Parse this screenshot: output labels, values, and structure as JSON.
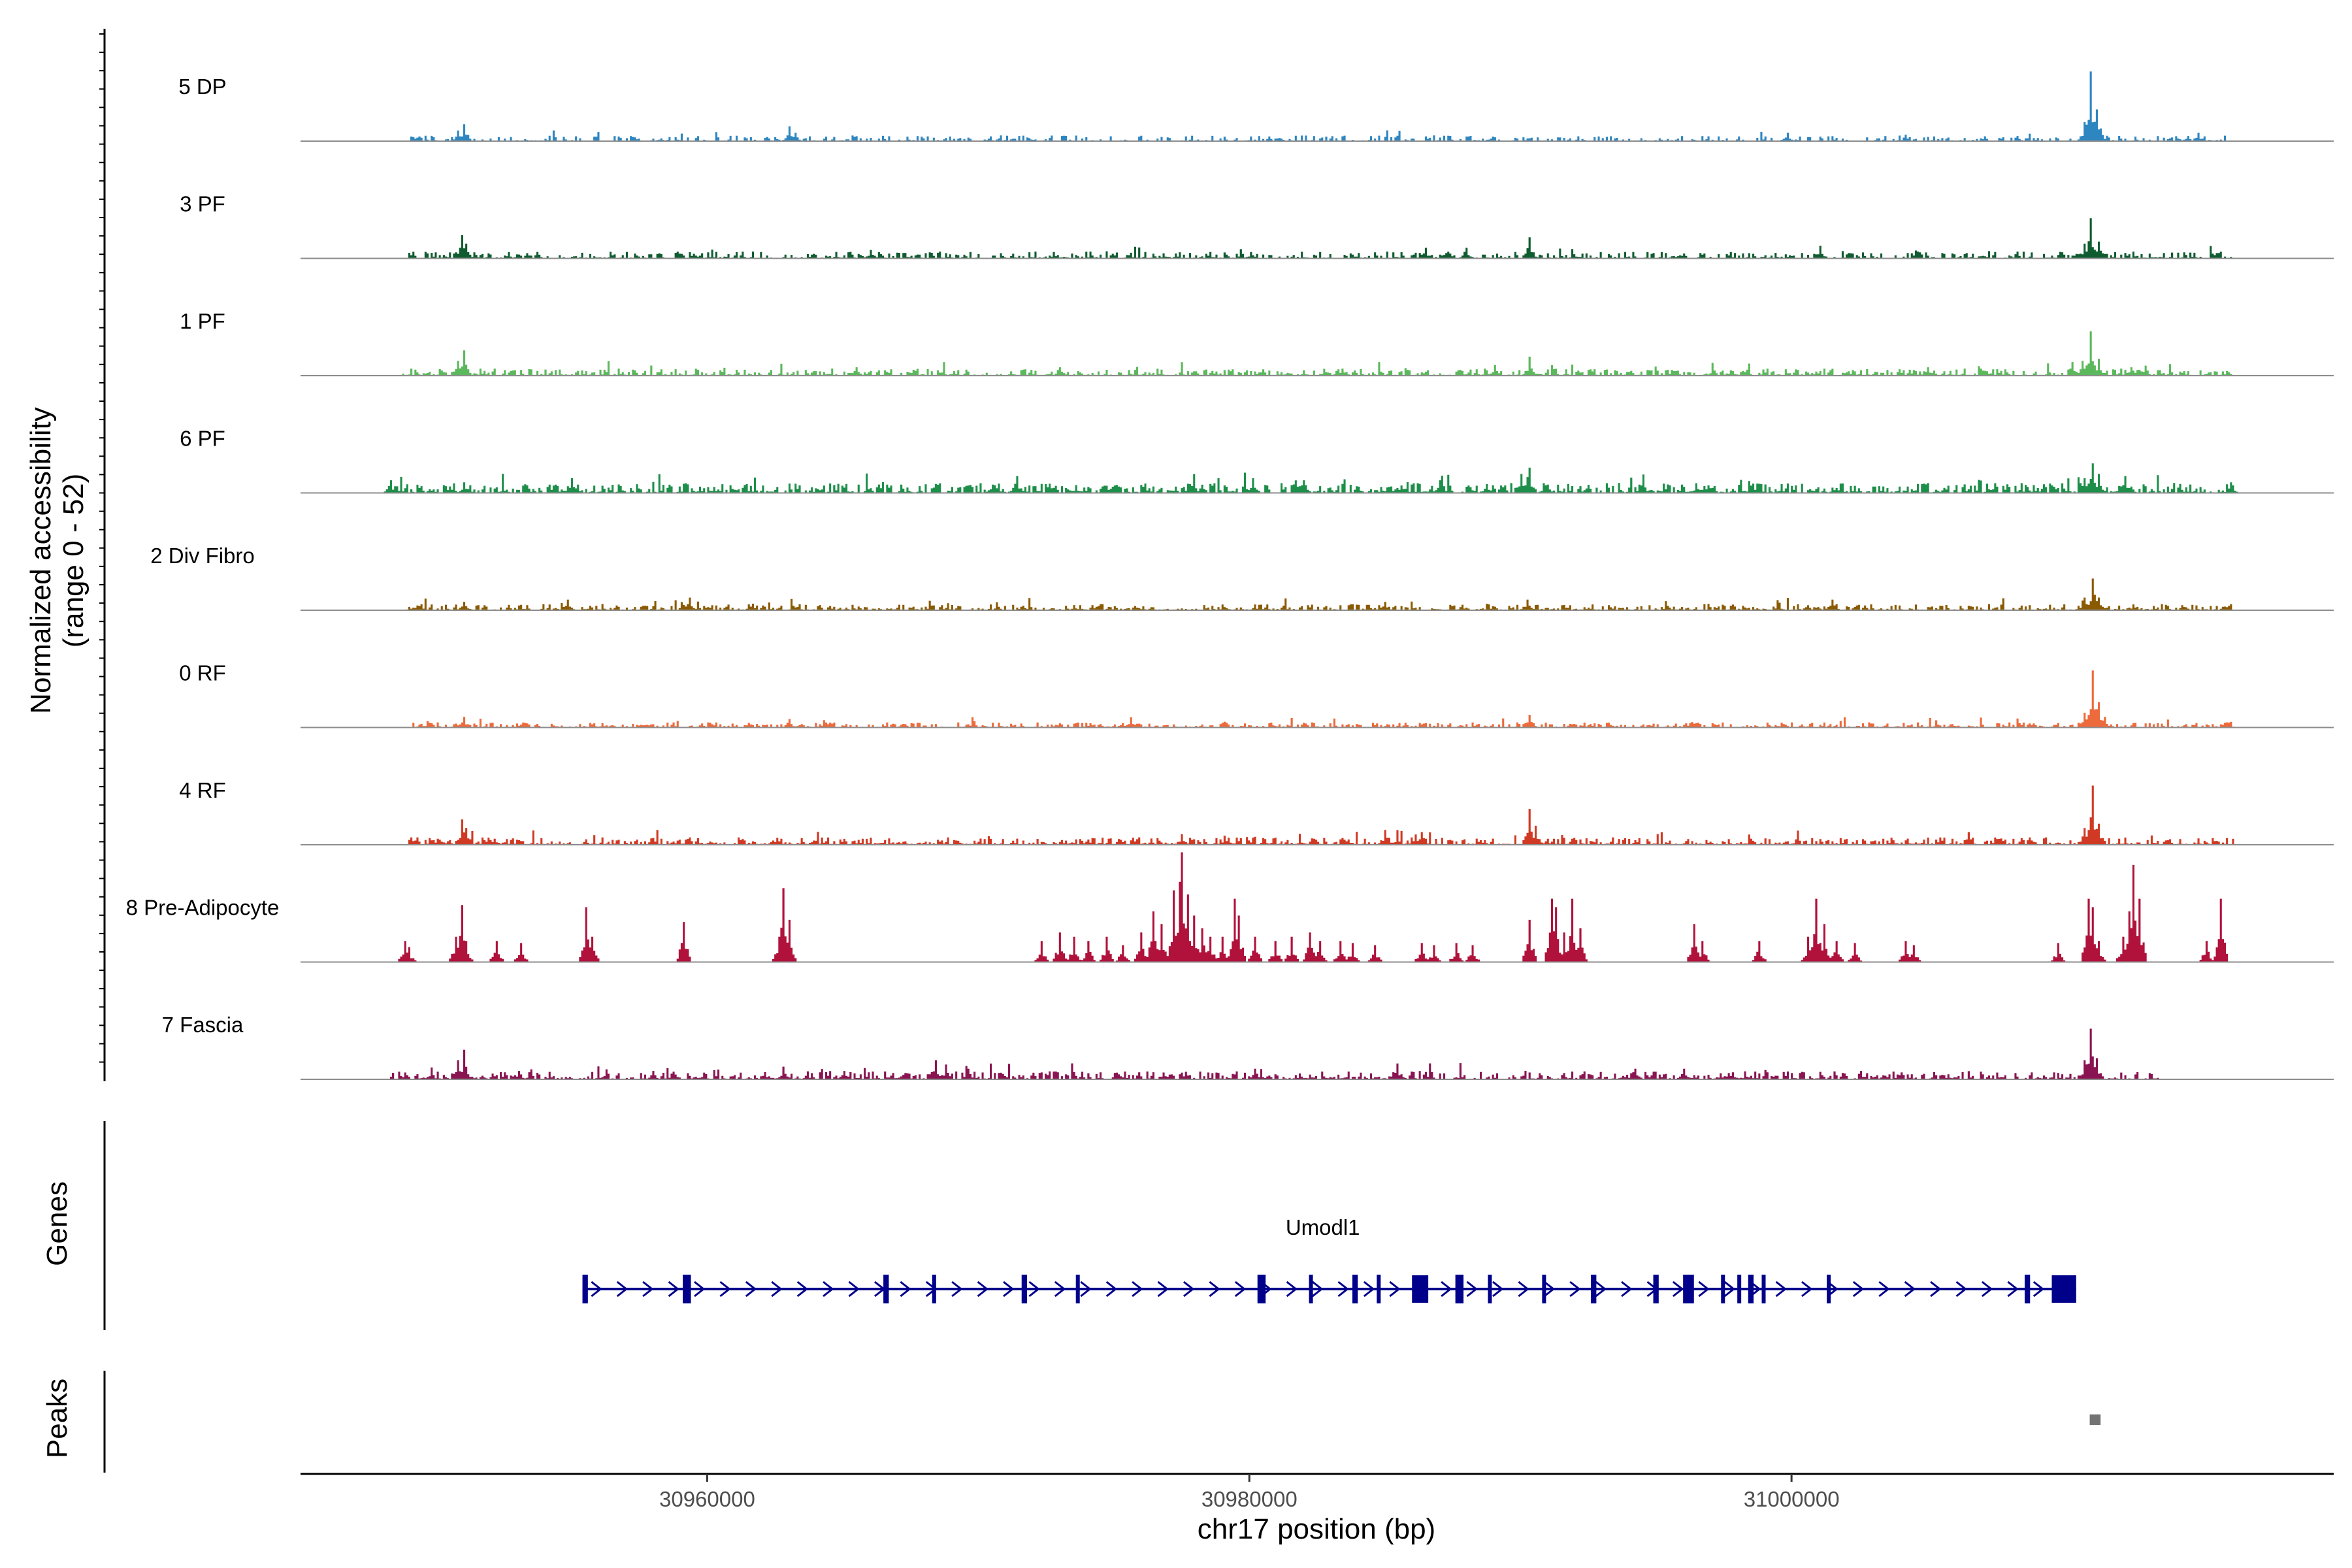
{
  "chart_data": {
    "type": "area",
    "chromosome": "chr17",
    "xlabel": "chr17 position (bp)",
    "ylabel_line1": "Normalized accessibility",
    "ylabel_line2": "(range 0 - 52)",
    "y_range": [
      0,
      52
    ],
    "x_range": [
      30945000,
      31020000
    ],
    "x_ticks": [
      30960000,
      30980000,
      31000000
    ],
    "x_tick_labels": [
      "30960000",
      "30980000",
      "31000000"
    ],
    "tracks": [
      {
        "name": "5 DP",
        "color": "#2e86c1",
        "noise": {
          "start": 30948900,
          "end": 31016300,
          "level": 2.0,
          "density": 0.55
        },
        "peaks": [
          [
            30950800,
            5
          ],
          [
            30951000,
            8
          ],
          [
            30963000,
            7
          ],
          [
            30963200,
            4
          ],
          [
            30999800,
            4
          ],
          [
            31004200,
            3
          ],
          [
            31010800,
            9
          ],
          [
            31011000,
            33
          ],
          [
            31011200,
            15
          ],
          [
            31011400,
            6
          ],
          [
            31015000,
            4
          ]
        ]
      },
      {
        "name": "3 PF",
        "color": "#0e5c2f",
        "noise": {
          "start": 30948700,
          "end": 31016300,
          "level": 2.4,
          "density": 0.65
        },
        "peaks": [
          [
            30950900,
            11
          ],
          [
            30951100,
            7
          ],
          [
            30966000,
            4
          ],
          [
            30980000,
            3
          ],
          [
            30986500,
            5
          ],
          [
            30988000,
            5
          ],
          [
            30990300,
            10
          ],
          [
            31001000,
            6
          ],
          [
            31010800,
            7
          ],
          [
            31011000,
            19
          ],
          [
            31011300,
            8
          ]
        ]
      },
      {
        "name": "1 PF",
        "color": "#5cb85c",
        "noise": {
          "start": 30948700,
          "end": 31016300,
          "level": 2.5,
          "density": 0.7
        },
        "peaks": [
          [
            30950800,
            7
          ],
          [
            30951000,
            12
          ],
          [
            30965500,
            4
          ],
          [
            30973000,
            4
          ],
          [
            30989000,
            5
          ],
          [
            30990300,
            9
          ],
          [
            31005000,
            4
          ],
          [
            31010700,
            7
          ],
          [
            31011000,
            21
          ],
          [
            31011300,
            8
          ],
          [
            31012500,
            4
          ]
        ]
      },
      {
        "name": "6 PF",
        "color": "#1e8f4a",
        "noise": {
          "start": 30948200,
          "end": 31016300,
          "level": 3.5,
          "density": 0.75
        },
        "peaks": [
          [
            30948300,
            6
          ],
          [
            30951000,
            5
          ],
          [
            30955000,
            7
          ],
          [
            30971400,
            8
          ],
          [
            30980100,
            7
          ],
          [
            30982000,
            6
          ],
          [
            30987000,
            6
          ],
          [
            30990000,
            9
          ],
          [
            30990300,
            12
          ],
          [
            31010800,
            7
          ],
          [
            31011100,
            14
          ],
          [
            31011300,
            9
          ],
          [
            31012300,
            8
          ],
          [
            31016200,
            5
          ]
        ]
      },
      {
        "name": "2 Div Fibro",
        "color": "#8b5a00",
        "noise": {
          "start": 30948800,
          "end": 31016300,
          "level": 2.2,
          "density": 0.7
        },
        "peaks": [
          [
            30951000,
            4
          ],
          [
            30954800,
            5
          ],
          [
            30959300,
            6
          ],
          [
            30985000,
            4
          ],
          [
            30990200,
            5
          ],
          [
            31001500,
            5
          ],
          [
            31010800,
            6
          ],
          [
            31011100,
            15
          ],
          [
            31011300,
            6
          ]
        ]
      },
      {
        "name": "0 RF",
        "color": "#ec6a3b",
        "noise": {
          "start": 30948800,
          "end": 31016300,
          "level": 1.8,
          "density": 0.7
        },
        "peaks": [
          [
            30951000,
            5
          ],
          [
            30963000,
            4
          ],
          [
            30990300,
            6
          ],
          [
            31010800,
            7
          ],
          [
            31011100,
            27
          ],
          [
            31011300,
            12
          ],
          [
            31011500,
            5
          ]
        ]
      },
      {
        "name": "4 RF",
        "color": "#d03a24",
        "noise": {
          "start": 30948800,
          "end": 31016300,
          "level": 2.6,
          "density": 0.75
        },
        "peaks": [
          [
            30950900,
            12
          ],
          [
            30951100,
            8
          ],
          [
            30977500,
            5
          ],
          [
            30985000,
            7
          ],
          [
            30986300,
            6
          ],
          [
            30990300,
            17
          ],
          [
            30990500,
            9
          ],
          [
            31006500,
            6
          ],
          [
            31010800,
            8
          ],
          [
            31011100,
            28
          ],
          [
            31011300,
            10
          ]
        ]
      },
      {
        "name": "8 Pre-Adipocyte",
        "color": "#b0123b",
        "noise": {
          "start": 30948800,
          "end": 31016300,
          "level": 0,
          "density": 0
        },
        "peaks": [
          [
            30948800,
            10
          ],
          [
            30949000,
            7
          ],
          [
            30950700,
            12
          ],
          [
            30950900,
            27
          ],
          [
            30951100,
            10
          ],
          [
            30952200,
            10
          ],
          [
            30953100,
            9
          ],
          [
            30955500,
            26
          ],
          [
            30955700,
            12
          ],
          [
            30959100,
            19
          ],
          [
            30962600,
            12
          ],
          [
            30962800,
            35
          ],
          [
            30963000,
            20
          ],
          [
            30972300,
            10
          ],
          [
            30973000,
            14
          ],
          [
            30973500,
            12
          ],
          [
            30974000,
            10
          ],
          [
            30974700,
            12
          ],
          [
            30975300,
            8
          ],
          [
            30976000,
            14
          ],
          [
            30976400,
            24
          ],
          [
            30976700,
            18
          ],
          [
            30977200,
            34
          ],
          [
            30977400,
            38
          ],
          [
            30977500,
            52
          ],
          [
            30977700,
            32
          ],
          [
            30977900,
            22
          ],
          [
            30978200,
            16
          ],
          [
            30978500,
            12
          ],
          [
            30979000,
            12
          ],
          [
            30979400,
            30
          ],
          [
            30979600,
            22
          ],
          [
            30980200,
            12
          ],
          [
            30980900,
            10
          ],
          [
            30981500,
            12
          ],
          [
            30982200,
            14
          ],
          [
            30982600,
            10
          ],
          [
            30983300,
            10
          ],
          [
            30983800,
            9
          ],
          [
            30984600,
            8
          ],
          [
            30986300,
            9
          ],
          [
            30986800,
            8
          ],
          [
            30987600,
            9
          ],
          [
            30988200,
            8
          ],
          [
            30990300,
            20
          ],
          [
            30991100,
            30
          ],
          [
            30991300,
            26
          ],
          [
            30991600,
            14
          ],
          [
            30991900,
            30
          ],
          [
            30992200,
            16
          ],
          [
            30996400,
            18
          ],
          [
            30996700,
            10
          ],
          [
            30998800,
            10
          ],
          [
            31000600,
            12
          ],
          [
            31000900,
            30
          ],
          [
            31001200,
            18
          ],
          [
            31001600,
            10
          ],
          [
            31002300,
            9
          ],
          [
            31004200,
            10
          ],
          [
            31004500,
            8
          ],
          [
            31009800,
            9
          ],
          [
            31010900,
            30
          ],
          [
            31011100,
            26
          ],
          [
            31011300,
            10
          ],
          [
            31012200,
            12
          ],
          [
            31012400,
            24
          ],
          [
            31012600,
            46
          ],
          [
            31012800,
            30
          ],
          [
            31015300,
            10
          ],
          [
            31015800,
            30
          ]
        ]
      },
      {
        "name": "7 Fascia",
        "color": "#8a1452",
        "noise": {
          "start": 30948200,
          "end": 31013500,
          "level": 2.8,
          "density": 0.7
        },
        "peaks": [
          [
            30950800,
            9
          ],
          [
            30951000,
            14
          ],
          [
            30953000,
            4
          ],
          [
            30958000,
            4
          ],
          [
            30962800,
            6
          ],
          [
            30965000,
            4
          ],
          [
            30968400,
            9
          ],
          [
            30968800,
            7
          ],
          [
            30969600,
            5
          ],
          [
            30980200,
            5
          ],
          [
            30994200,
            5
          ],
          [
            30996000,
            5
          ],
          [
            31010800,
            9
          ],
          [
            31011000,
            24
          ],
          [
            31011200,
            10
          ]
        ]
      }
    ],
    "genes_track": {
      "title": "Genes",
      "gene_name": "Umodl1",
      "start": 30955400,
      "end": 31010500,
      "strand": "+",
      "color": "#00008b",
      "exons": [
        [
          30955400,
          30955600
        ],
        [
          30959100,
          30959400
        ],
        [
          30966500,
          30966700
        ],
        [
          30968300,
          30968400
        ],
        [
          30971600,
          30971800
        ],
        [
          30973600,
          30973700
        ],
        [
          30980300,
          30980600
        ],
        [
          30982200,
          30982300
        ],
        [
          30983800,
          30984000
        ],
        [
          30984700,
          30984800
        ],
        [
          30986000,
          30986600
        ],
        [
          30987600,
          30987900
        ],
        [
          30988800,
          30988900
        ],
        [
          30990800,
          30990900
        ],
        [
          30992600,
          30992800
        ],
        [
          30994900,
          30995100
        ],
        [
          30996000,
          30996400
        ],
        [
          30997400,
          30997500
        ],
        [
          30998000,
          30998100
        ],
        [
          30998400,
          30998600
        ],
        [
          30998900,
          30999000
        ],
        [
          31001300,
          31001400
        ],
        [
          31008600,
          31008800
        ],
        [
          31009600,
          31010500
        ]
      ],
      "big_exons": [
        [
          30986000,
          30986600
        ],
        [
          31009600,
          31010500
        ]
      ]
    },
    "peaks_track": {
      "title": "Peaks",
      "color": "#737373",
      "regions": [
        [
          31011000,
          31011400
        ]
      ]
    }
  }
}
